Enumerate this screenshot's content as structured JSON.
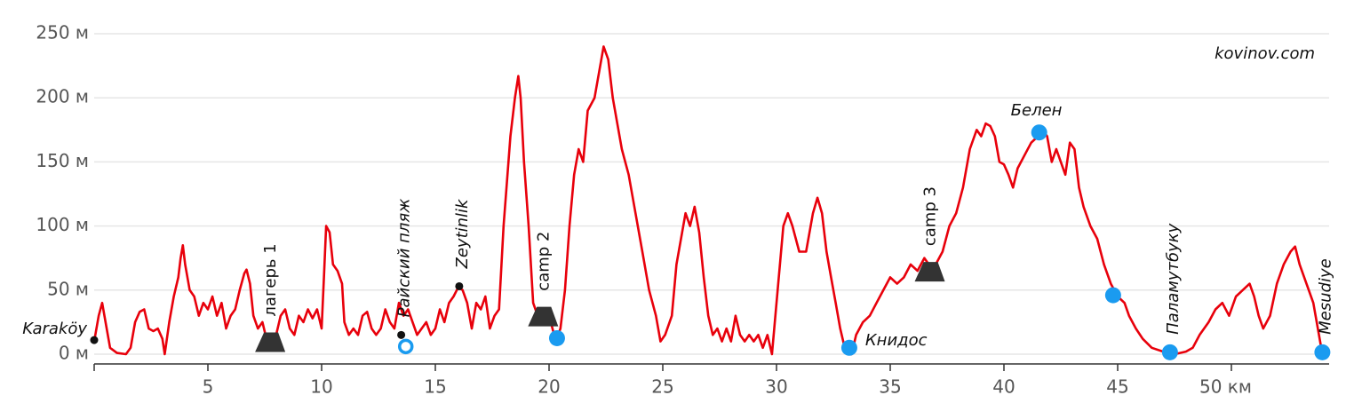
{
  "chart_data": {
    "type": "line",
    "source": "kovinov.com",
    "xlim": [
      0,
      54.3
    ],
    "ylim": [
      0,
      250
    ],
    "grid": true,
    "xticks": [
      5,
      10,
      15,
      20,
      25,
      30,
      35,
      40,
      45,
      {
        "value": 50,
        "label": "50 км"
      }
    ],
    "yticks": [
      {
        "value": 0,
        "label": "0 м"
      },
      {
        "value": 50,
        "label": "50 м"
      },
      {
        "value": 100,
        "label": "100 м"
      },
      {
        "value": 150,
        "label": "150 м"
      },
      {
        "value": 200,
        "label": "200 м"
      },
      {
        "value": 250,
        "label": "250 м"
      }
    ],
    "x": [
      0,
      0.2,
      0.35,
      0.5,
      0.7,
      1.0,
      1.4,
      1.6,
      1.8,
      2.0,
      2.2,
      2.4,
      2.6,
      2.8,
      3.0,
      3.1,
      3.3,
      3.5,
      3.7,
      3.8,
      3.9,
      4.0,
      4.2,
      4.4,
      4.6,
      4.8,
      5.0,
      5.2,
      5.4,
      5.6,
      5.8,
      6.0,
      6.2,
      6.4,
      6.6,
      6.7,
      6.85,
      7.0,
      7.2,
      7.4,
      7.6,
      7.8,
      8.0,
      8.2,
      8.4,
      8.6,
      8.8,
      9.0,
      9.2,
      9.4,
      9.6,
      9.8,
      10.0,
      10.1,
      10.2,
      10.35,
      10.5,
      10.7,
      10.9,
      11.0,
      11.2,
      11.4,
      11.6,
      11.8,
      12.0,
      12.2,
      12.4,
      12.6,
      12.8,
      13.0,
      13.2,
      13.4,
      13.6,
      13.8,
      14.0,
      14.2,
      14.4,
      14.6,
      14.8,
      15.0,
      15.2,
      15.4,
      15.6,
      15.8,
      16.0,
      16.2,
      16.4,
      16.6,
      16.8,
      17.0,
      17.2,
      17.4,
      17.6,
      17.8,
      18.0,
      18.3,
      18.5,
      18.65,
      18.75,
      18.9,
      19.1,
      19.3,
      19.5,
      19.8,
      20.0,
      20.3,
      20.5,
      20.7,
      20.9,
      21.1,
      21.3,
      21.5,
      21.7,
      22.0,
      22.2,
      22.4,
      22.6,
      22.8,
      23.0,
      23.2,
      23.5,
      23.8,
      24.1,
      24.4,
      24.7,
      24.9,
      25.1,
      25.4,
      25.6,
      25.8,
      26.0,
      26.2,
      26.4,
      26.6,
      26.8,
      27.0,
      27.2,
      27.4,
      27.6,
      27.8,
      28.0,
      28.2,
      28.4,
      28.6,
      28.8,
      29.0,
      29.2,
      29.4,
      29.6,
      29.8,
      30.0,
      30.3,
      30.5,
      30.7,
      31.0,
      31.3,
      31.6,
      31.8,
      32.0,
      32.2,
      32.4,
      32.6,
      32.8,
      33.0,
      33.3,
      33.5,
      33.8,
      34.1,
      34.4,
      34.7,
      35.0,
      35.3,
      35.6,
      35.9,
      36.2,
      36.5,
      36.7,
      37.0,
      37.3,
      37.6,
      37.9,
      38.2,
      38.5,
      38.8,
      39.0,
      39.2,
      39.4,
      39.6,
      39.8,
      40.0,
      40.2,
      40.4,
      40.6,
      40.9,
      41.2,
      41.5,
      41.7,
      41.9,
      42.1,
      42.3,
      42.5,
      42.7,
      42.9,
      43.1,
      43.3,
      43.5,
      43.8,
      44.1,
      44.4,
      44.7,
      45.0,
      45.3,
      45.5,
      45.8,
      46.1,
      46.5,
      47.0,
      47.5,
      48.0,
      48.3,
      48.6,
      49.0,
      49.3,
      49.6,
      49.9,
      50.2,
      50.5,
      50.8,
      51.0,
      51.2,
      51.4,
      51.7,
      52.0,
      52.3,
      52.6,
      52.8,
      53.0,
      53.3,
      53.6,
      53.8,
      54.0,
      54.1
    ],
    "series": [
      {
        "color": "#e8000b",
        "values": [
          10,
          30,
          40,
          25,
          5,
          1,
          0,
          5,
          25,
          33,
          35,
          20,
          18,
          20,
          12,
          0,
          25,
          45,
          60,
          75,
          85,
          70,
          50,
          45,
          30,
          40,
          35,
          45,
          30,
          40,
          20,
          30,
          35,
          50,
          63,
          66,
          55,
          30,
          20,
          25,
          10,
          12,
          15,
          30,
          35,
          20,
          15,
          30,
          25,
          35,
          28,
          35,
          20,
          60,
          100,
          95,
          70,
          65,
          55,
          25,
          15,
          20,
          15,
          30,
          33,
          20,
          15,
          20,
          35,
          25,
          20,
          40,
          30,
          35,
          25,
          15,
          20,
          25,
          15,
          20,
          35,
          25,
          40,
          45,
          52,
          50,
          40,
          20,
          40,
          35,
          45,
          20,
          30,
          35,
          100,
          170,
          200,
          217,
          200,
          150,
          100,
          40,
          30,
          35,
          30,
          10,
          20,
          50,
          100,
          140,
          160,
          150,
          190,
          200,
          220,
          240,
          230,
          200,
          180,
          160,
          140,
          110,
          80,
          50,
          30,
          10,
          15,
          30,
          70,
          90,
          110,
          100,
          115,
          95,
          60,
          30,
          15,
          20,
          10,
          20,
          10,
          30,
          15,
          10,
          15,
          10,
          15,
          5,
          15,
          0,
          40,
          100,
          110,
          100,
          80,
          80,
          110,
          122,
          110,
          80,
          60,
          40,
          20,
          5,
          0,
          15,
          25,
          30,
          40,
          50,
          60,
          55,
          60,
          70,
          65,
          75,
          70,
          70,
          80,
          100,
          110,
          130,
          160,
          175,
          170,
          180,
          178,
          170,
          150,
          148,
          140,
          130,
          145,
          155,
          165,
          170,
          175,
          170,
          150,
          160,
          150,
          140,
          165,
          160,
          130,
          115,
          100,
          90,
          70,
          55,
          45,
          40,
          30,
          20,
          12,
          5,
          2,
          0,
          2,
          5,
          15,
          25,
          35,
          40,
          30,
          45,
          50,
          55,
          45,
          30,
          20,
          30,
          55,
          70,
          80,
          84,
          70,
          55,
          40,
          20,
          0,
          2
        ]
      }
    ],
    "annotations": [
      {
        "label": "Karaköy",
        "x": 0,
        "y": 11,
        "marker": "dot",
        "label_position": "left"
      },
      {
        "label": "лагерь 1",
        "x": 7.7,
        "y": 10,
        "marker": "tent",
        "label_position": "vertical"
      },
      {
        "label": "Райский пляж",
        "x": 13.5,
        "y": 15,
        "marker": "dot",
        "label_position": "vertical"
      },
      {
        "label": null,
        "x": 13.7,
        "y": 6,
        "marker": "hollow-circle",
        "label_position": "none"
      },
      {
        "label": "Zeytinlik",
        "x": 16.05,
        "y": 53,
        "marker": "dot",
        "label_position": "vertical"
      },
      {
        "label": "camp 2",
        "x": 19.7,
        "y": 30,
        "marker": "tent",
        "label_position": "vertical"
      },
      {
        "label": null,
        "x": 20.35,
        "y": 12.5,
        "marker": "circle",
        "label_position": "none"
      },
      {
        "label": "Книдос",
        "x": 33.2,
        "y": 5,
        "marker": "circle",
        "label_position": "right"
      },
      {
        "label": "camp 3",
        "x": 36.7,
        "y": 65,
        "marker": "tent",
        "label_position": "vertical"
      },
      {
        "label": "Белен",
        "x": 41.55,
        "y": 173,
        "marker": "circle",
        "label_position": "above"
      },
      {
        "label": null,
        "x": 44.8,
        "y": 46,
        "marker": "circle",
        "label_position": "none"
      },
      {
        "label": "Паламутбуку",
        "x": 47.3,
        "y": 1.5,
        "marker": "circle",
        "label_position": "vertical"
      },
      {
        "label": "Mesudiye",
        "x": 54.0,
        "y": 1.5,
        "marker": "circle",
        "label_position": "vertical"
      }
    ]
  }
}
